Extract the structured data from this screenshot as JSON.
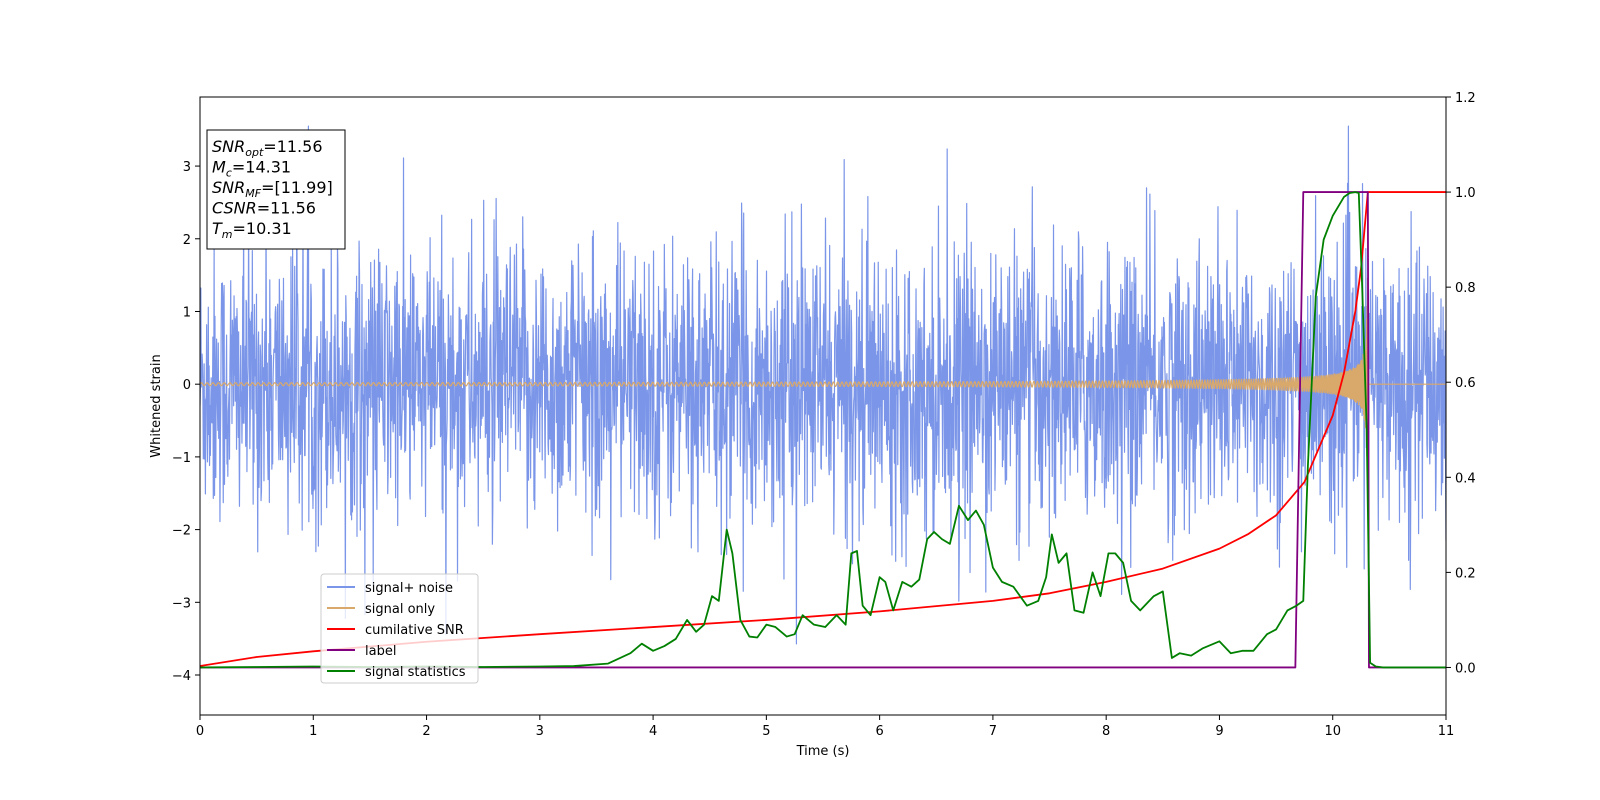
{
  "chart_data": {
    "type": "line",
    "title": "",
    "xlabel": "Time (s)",
    "ylabel": "Whitened strain",
    "xlim": [
      0,
      11
    ],
    "ylim": [
      -4.55,
      3.95
    ],
    "y2lim": [
      -0.1,
      1.2
    ],
    "xticks": [
      "0",
      "1",
      "2",
      "3",
      "4",
      "5",
      "6",
      "7",
      "8",
      "9",
      "10",
      "11"
    ],
    "yticks": [
      "−4",
      "−3",
      "−2",
      "−1",
      "0",
      "1",
      "2",
      "3"
    ],
    "y2ticks": [
      "0.0",
      "0.2",
      "0.4",
      "0.6",
      "0.8",
      "1.0",
      "1.2"
    ],
    "grid": false,
    "legend_position": "lower-left",
    "annotation": {
      "lines": [
        {
          "var": "SNR",
          "sub": "opt",
          "value": "=11.56"
        },
        {
          "var": "M",
          "sub": "c",
          "value": "=14.31"
        },
        {
          "var": "SNR",
          "sub": "MF",
          "value": "=[11.99]"
        },
        {
          "var": "CSNR",
          "sub": "",
          "value": "=11.56"
        },
        {
          "var": "T",
          "sub": "m",
          "value": "=10.31"
        }
      ]
    },
    "series": [
      {
        "name": "signal+ noise",
        "color": "#7b96e8",
        "axis": "left",
        "kind": "noise",
        "description_values": {
          "noise_sigma": 0.95,
          "y_min": -4.15,
          "y_max": 3.55
        }
      },
      {
        "name": "signal only",
        "color": "#d9a86b",
        "axis": "left",
        "kind": "chirp",
        "x_start": 0,
        "x_merge": 10.31,
        "x_end": 11,
        "amplitude_start": 0.02,
        "amplitude_peak": 1.65
      },
      {
        "name": "cumilative SNR",
        "color": "#ff0000",
        "axis": "right",
        "x": [
          0,
          0.5,
          1,
          2,
          3,
          4,
          5,
          6,
          7,
          7.5,
          8,
          8.5,
          9,
          9.25,
          9.5,
          9.75,
          10,
          10.1,
          10.2,
          10.25,
          10.31,
          11
        ],
        "values": [
          0.003,
          0.022,
          0.034,
          0.054,
          0.07,
          0.085,
          0.1,
          0.118,
          0.14,
          0.156,
          0.18,
          0.208,
          0.25,
          0.28,
          0.32,
          0.39,
          0.53,
          0.62,
          0.75,
          0.84,
          1.0,
          1.0
        ]
      },
      {
        "name": "label",
        "color": "#800080",
        "axis": "right",
        "x": [
          0,
          9.67,
          9.74,
          10.31,
          10.32,
          11
        ],
        "values": [
          0,
          0,
          1,
          1,
          0,
          0
        ]
      },
      {
        "name": "signal statistics",
        "color": "#008000",
        "axis": "right",
        "x": [
          0,
          0.5,
          1,
          1.5,
          2,
          2.5,
          3,
          3.3,
          3.6,
          3.8,
          3.9,
          4.0,
          4.1,
          4.2,
          4.3,
          4.38,
          4.45,
          4.52,
          4.58,
          4.65,
          4.7,
          4.77,
          4.85,
          4.92,
          5.0,
          5.08,
          5.18,
          5.25,
          5.32,
          5.42,
          5.52,
          5.62,
          5.7,
          5.75,
          5.8,
          5.85,
          5.92,
          6.0,
          6.05,
          6.12,
          6.2,
          6.28,
          6.35,
          6.42,
          6.48,
          6.55,
          6.62,
          6.7,
          6.78,
          6.85,
          6.92,
          7.0,
          7.08,
          7.18,
          7.3,
          7.4,
          7.47,
          7.52,
          7.58,
          7.65,
          7.72,
          7.8,
          7.88,
          7.95,
          8.02,
          8.08,
          8.15,
          8.22,
          8.3,
          8.42,
          8.5,
          8.58,
          8.65,
          8.75,
          8.85,
          9.0,
          9.1,
          9.2,
          9.3,
          9.42,
          9.5,
          9.6,
          9.68,
          9.74,
          9.78,
          9.85,
          9.92,
          10.0,
          10.05,
          10.1,
          10.15,
          10.2,
          10.23,
          10.26,
          10.3,
          10.33,
          10.38,
          10.45,
          11
        ],
        "values": [
          0.0,
          0.001,
          0.002,
          0.001,
          0.002,
          0.001,
          0.002,
          0.003,
          0.008,
          0.03,
          0.05,
          0.035,
          0.045,
          0.06,
          0.1,
          0.075,
          0.09,
          0.15,
          0.14,
          0.29,
          0.24,
          0.1,
          0.065,
          0.063,
          0.09,
          0.085,
          0.065,
          0.07,
          0.11,
          0.09,
          0.085,
          0.11,
          0.09,
          0.24,
          0.245,
          0.13,
          0.11,
          0.19,
          0.18,
          0.12,
          0.18,
          0.17,
          0.185,
          0.27,
          0.285,
          0.27,
          0.26,
          0.34,
          0.31,
          0.33,
          0.3,
          0.21,
          0.18,
          0.17,
          0.13,
          0.14,
          0.19,
          0.28,
          0.22,
          0.24,
          0.12,
          0.115,
          0.2,
          0.15,
          0.24,
          0.24,
          0.22,
          0.14,
          0.12,
          0.15,
          0.16,
          0.02,
          0.03,
          0.025,
          0.04,
          0.055,
          0.03,
          0.035,
          0.035,
          0.07,
          0.08,
          0.12,
          0.13,
          0.14,
          0.42,
          0.78,
          0.9,
          0.95,
          0.97,
          0.99,
          0.998,
          1.0,
          0.998,
          0.8,
          0.5,
          0.01,
          0.002,
          0.0,
          0.0
        ]
      }
    ]
  }
}
